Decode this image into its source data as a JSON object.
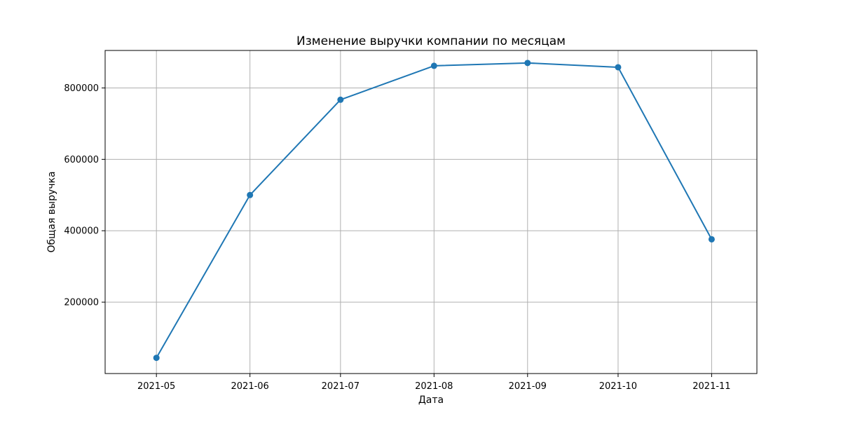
{
  "chart_data": {
    "type": "line",
    "title": "Изменение выручки компании по месяцам",
    "xlabel": "Дата",
    "ylabel": "Общая выручка",
    "x": [
      "2021-05-01",
      "2021-06-01",
      "2021-07-01",
      "2021-08-01",
      "2021-09-01",
      "2021-10-01",
      "2021-11-01"
    ],
    "series": [
      {
        "values": [
          44000,
          500000,
          767000,
          862000,
          870000,
          858000,
          376000
        ],
        "color": "#1f77b4",
        "marker": "circle"
      }
    ],
    "x_ticks": [
      "2021-05",
      "2021-06",
      "2021-07",
      "2021-08",
      "2021-09",
      "2021-10",
      "2021-11"
    ],
    "y_ticks": [
      200000,
      400000,
      600000,
      800000
    ],
    "xlim": [
      "2021-04-14",
      "2021-11-16"
    ],
    "ylim": [
      0,
      905000
    ],
    "grid": true,
    "legend": "none"
  }
}
